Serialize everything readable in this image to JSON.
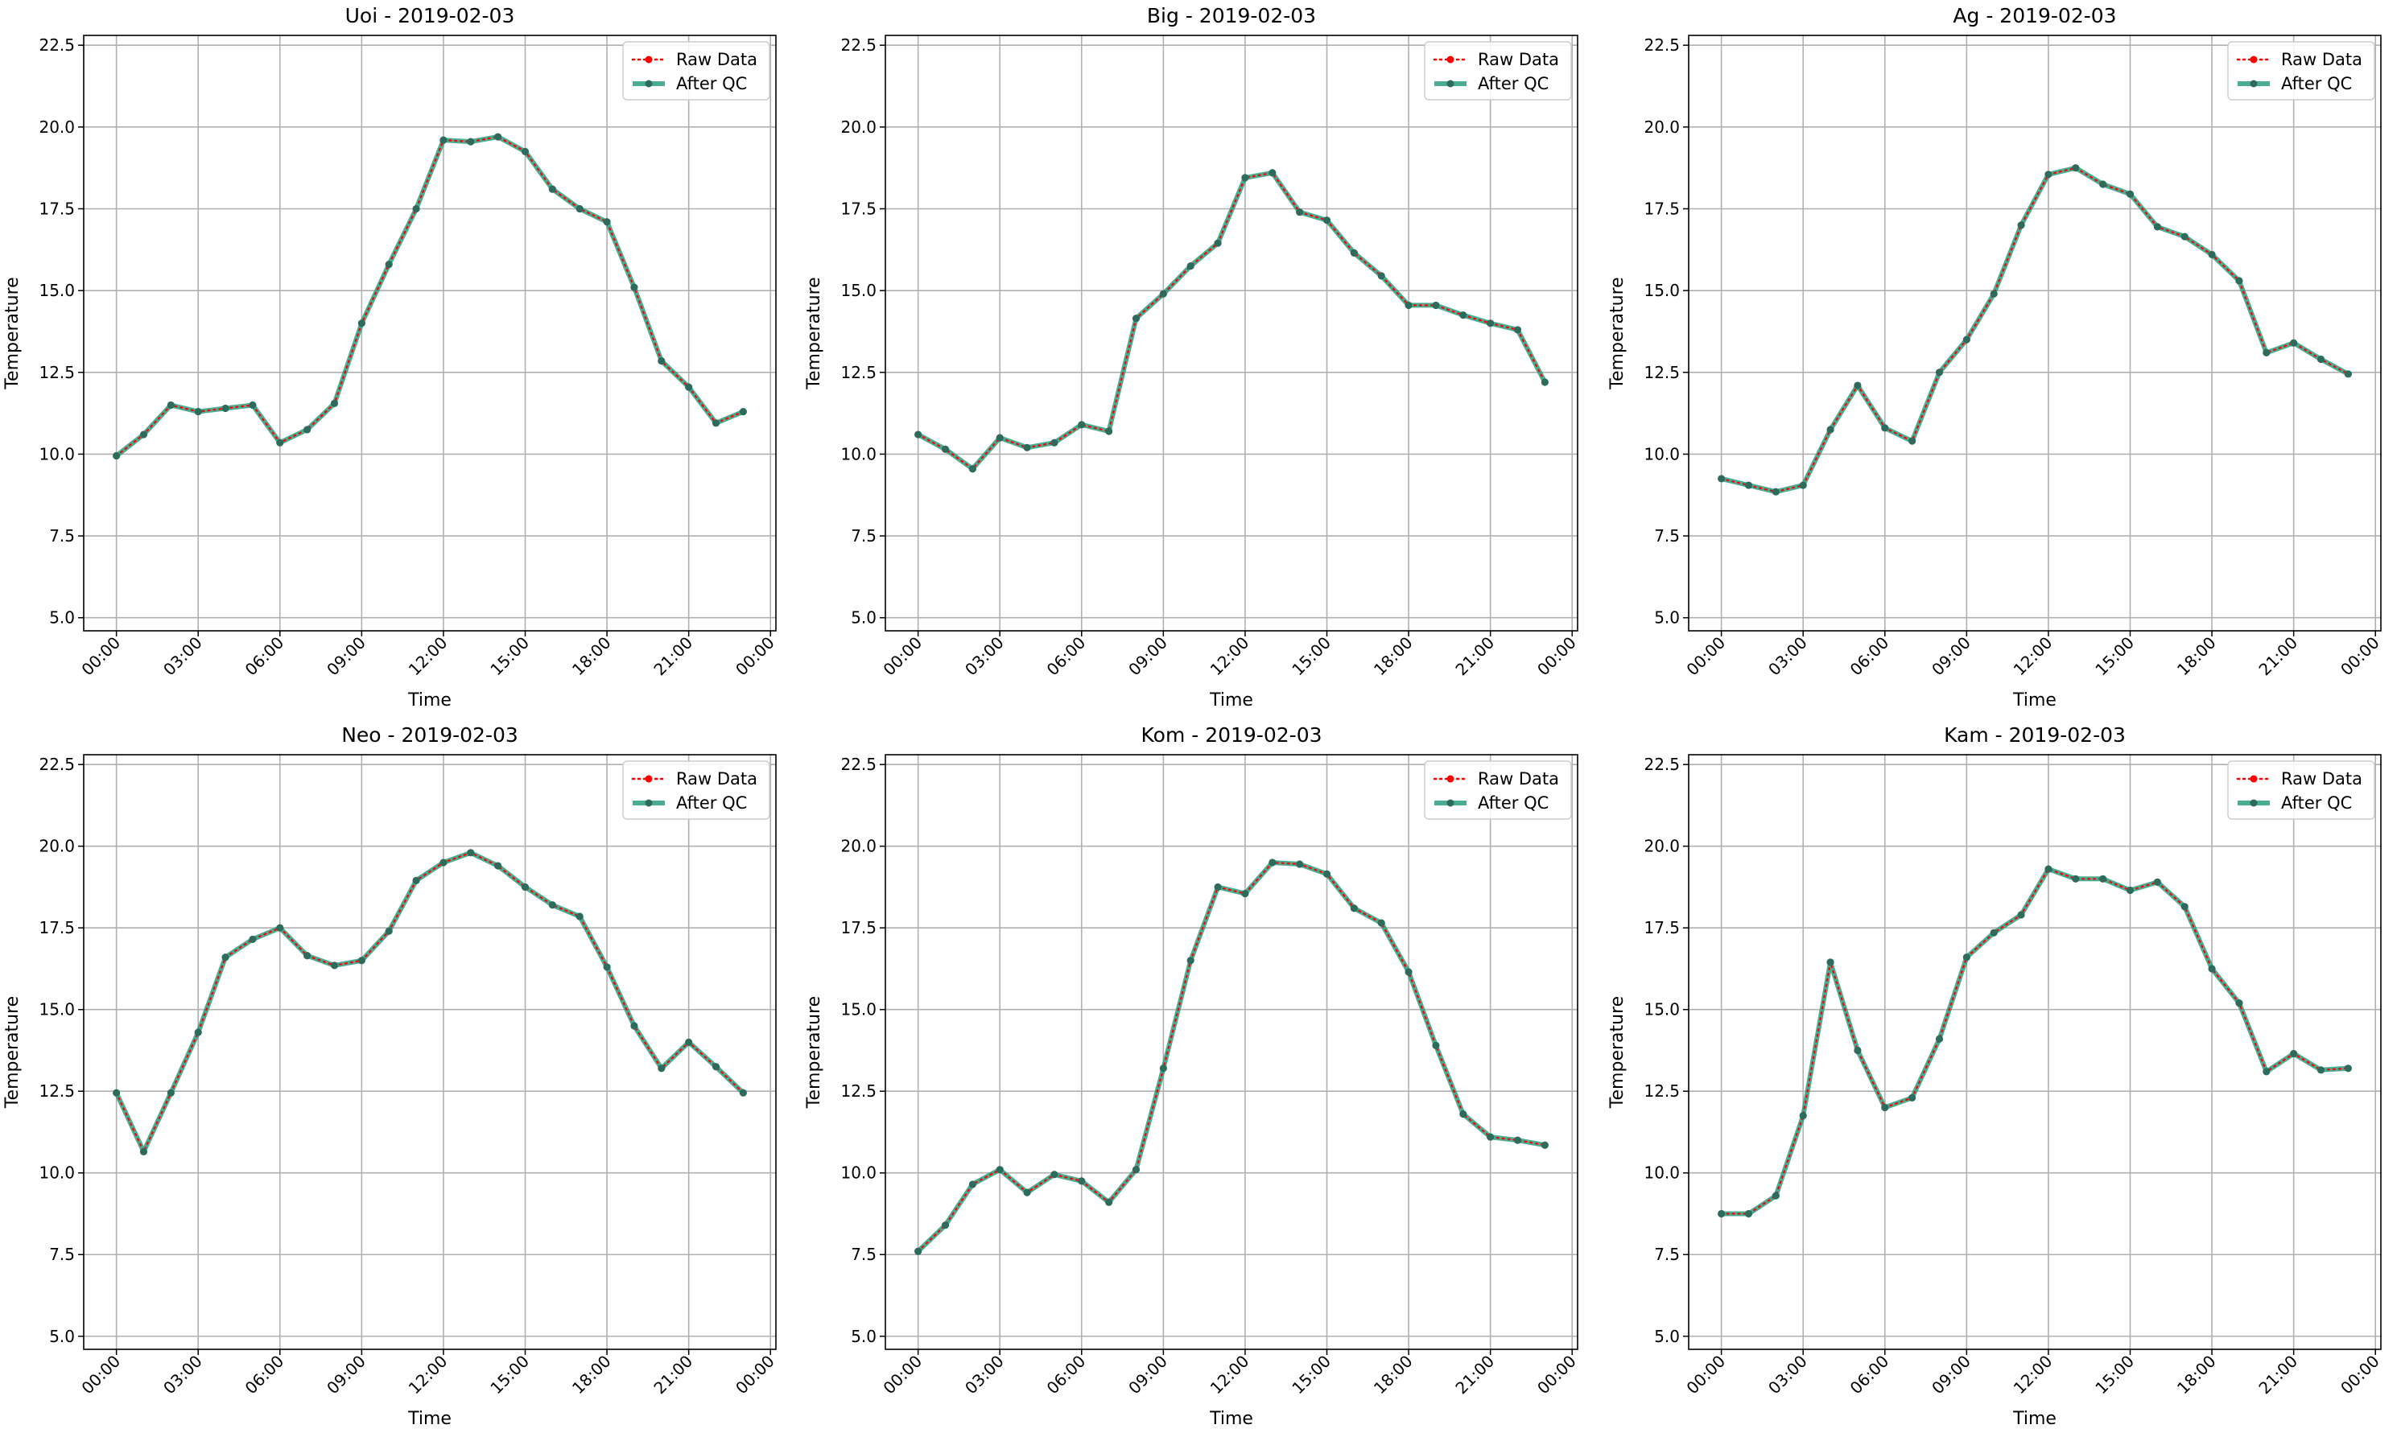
{
  "legend": {
    "raw_label": "Raw Data",
    "qc_label": "After QC",
    "placement": "upper right"
  },
  "colors": {
    "raw": "#ff0000",
    "qc": "#2a9d7f",
    "grid": "#b0b0b0",
    "axes": "#000000"
  },
  "chart_data": [
    {
      "type": "line",
      "title": "Uoi - 2019-02-03",
      "xlabel": "Time",
      "ylabel": "Temperature",
      "x_ticks": [
        "00:00",
        "03:00",
        "06:00",
        "09:00",
        "12:00",
        "15:00",
        "18:00",
        "21:00",
        "00:00"
      ],
      "y_ticks": [
        "5.0",
        "7.5",
        "10.0",
        "12.5",
        "15.0",
        "17.5",
        "20.0",
        "22.5"
      ],
      "ylim": [
        4.6,
        22.8
      ],
      "xlim_hours": [
        -1.2,
        24.2
      ],
      "x_hours": [
        0,
        1,
        2,
        3,
        4,
        5,
        6,
        7,
        8,
        9,
        10,
        11,
        12,
        13,
        14,
        15,
        16,
        17,
        18,
        19,
        20,
        21,
        22,
        23
      ],
      "grid": true,
      "series": [
        {
          "name": "Raw Data",
          "values": [
            9.95,
            10.6,
            11.5,
            11.3,
            11.4,
            11.5,
            10.35,
            10.75,
            11.55,
            14.0,
            15.8,
            17.5,
            19.6,
            19.55,
            19.7,
            19.25,
            18.1,
            17.5,
            17.1,
            15.1,
            12.85,
            12.05,
            10.95,
            11.3
          ]
        },
        {
          "name": "After QC",
          "values": [
            9.95,
            10.6,
            11.5,
            11.3,
            11.4,
            11.5,
            10.35,
            10.75,
            11.55,
            14.0,
            15.8,
            17.5,
            19.6,
            19.55,
            19.7,
            19.25,
            18.1,
            17.5,
            17.1,
            15.1,
            12.85,
            12.05,
            10.95,
            11.3
          ]
        }
      ]
    },
    {
      "type": "line",
      "title": "Big - 2019-02-03",
      "xlabel": "Time",
      "ylabel": "Temperature",
      "x_ticks": [
        "00:00",
        "03:00",
        "06:00",
        "09:00",
        "12:00",
        "15:00",
        "18:00",
        "21:00",
        "00:00"
      ],
      "y_ticks": [
        "5.0",
        "7.5",
        "10.0",
        "12.5",
        "15.0",
        "17.5",
        "20.0",
        "22.5"
      ],
      "ylim": [
        4.6,
        22.8
      ],
      "xlim_hours": [
        -1.2,
        24.2
      ],
      "x_hours": [
        0,
        1,
        2,
        3,
        4,
        5,
        6,
        7,
        8,
        9,
        10,
        11,
        12,
        13,
        14,
        15,
        16,
        17,
        18,
        19,
        20,
        21,
        22,
        23
      ],
      "grid": true,
      "series": [
        {
          "name": "Raw Data",
          "values": [
            10.6,
            10.15,
            9.55,
            10.5,
            10.2,
            10.35,
            10.9,
            10.7,
            14.15,
            14.9,
            15.75,
            16.45,
            18.45,
            18.6,
            17.4,
            17.15,
            16.15,
            15.45,
            14.55,
            14.55,
            14.25,
            14.0,
            13.8,
            12.2
          ]
        },
        {
          "name": "After QC",
          "values": [
            10.6,
            10.15,
            9.55,
            10.5,
            10.2,
            10.35,
            10.9,
            10.7,
            14.15,
            14.9,
            15.75,
            16.45,
            18.45,
            18.6,
            17.4,
            17.15,
            16.15,
            15.45,
            14.55,
            14.55,
            14.25,
            14.0,
            13.8,
            12.2
          ]
        }
      ]
    },
    {
      "type": "line",
      "title": "Ag - 2019-02-03",
      "xlabel": "Time",
      "ylabel": "Temperature",
      "x_ticks": [
        "00:00",
        "03:00",
        "06:00",
        "09:00",
        "12:00",
        "15:00",
        "18:00",
        "21:00",
        "00:00"
      ],
      "y_ticks": [
        "5.0",
        "7.5",
        "10.0",
        "12.5",
        "15.0",
        "17.5",
        "20.0",
        "22.5"
      ],
      "ylim": [
        4.6,
        22.8
      ],
      "xlim_hours": [
        -1.2,
        24.2
      ],
      "x_hours": [
        0,
        1,
        2,
        3,
        4,
        5,
        6,
        7,
        8,
        9,
        10,
        11,
        12,
        13,
        14,
        15,
        16,
        17,
        18,
        19,
        20,
        21,
        22,
        23
      ],
      "grid": true,
      "series": [
        {
          "name": "Raw Data",
          "values": [
            9.25,
            9.05,
            8.85,
            9.05,
            10.75,
            12.1,
            10.8,
            10.4,
            12.5,
            13.5,
            14.9,
            17.0,
            18.55,
            18.75,
            18.25,
            17.95,
            16.95,
            16.65,
            16.1,
            15.3,
            13.1,
            13.4,
            12.9,
            12.45
          ]
        },
        {
          "name": "After QC",
          "values": [
            9.25,
            9.05,
            8.85,
            9.05,
            10.75,
            12.1,
            10.8,
            10.4,
            12.5,
            13.5,
            14.9,
            17.0,
            18.55,
            18.75,
            18.25,
            17.95,
            16.95,
            16.65,
            16.1,
            15.3,
            13.1,
            13.4,
            12.9,
            12.45
          ]
        }
      ]
    },
    {
      "type": "line",
      "title": "Neo - 2019-02-03",
      "xlabel": "Time",
      "ylabel": "Temperature",
      "x_ticks": [
        "00:00",
        "03:00",
        "06:00",
        "09:00",
        "12:00",
        "15:00",
        "18:00",
        "21:00",
        "00:00"
      ],
      "y_ticks": [
        "5.0",
        "7.5",
        "10.0",
        "12.5",
        "15.0",
        "17.5",
        "20.0",
        "22.5"
      ],
      "ylim": [
        4.6,
        22.8
      ],
      "xlim_hours": [
        -1.2,
        24.2
      ],
      "x_hours": [
        0,
        1,
        2,
        3,
        4,
        5,
        6,
        7,
        8,
        9,
        10,
        11,
        12,
        13,
        14,
        15,
        16,
        17,
        18,
        19,
        20,
        21,
        22,
        23
      ],
      "grid": true,
      "series": [
        {
          "name": "Raw Data",
          "values": [
            12.45,
            10.65,
            12.45,
            14.3,
            16.6,
            17.15,
            17.5,
            16.65,
            16.35,
            16.5,
            17.4,
            18.95,
            19.5,
            19.8,
            19.4,
            18.75,
            18.2,
            17.85,
            16.3,
            14.5,
            13.2,
            14.0,
            13.25,
            12.45
          ]
        },
        {
          "name": "After QC",
          "values": [
            12.45,
            10.65,
            12.45,
            14.3,
            16.6,
            17.15,
            17.5,
            16.65,
            16.35,
            16.5,
            17.4,
            18.95,
            19.5,
            19.8,
            19.4,
            18.75,
            18.2,
            17.85,
            16.3,
            14.5,
            13.2,
            14.0,
            13.25,
            12.45
          ]
        }
      ]
    },
    {
      "type": "line",
      "title": "Kom - 2019-02-03",
      "xlabel": "Time",
      "ylabel": "Temperature",
      "x_ticks": [
        "00:00",
        "03:00",
        "06:00",
        "09:00",
        "12:00",
        "15:00",
        "18:00",
        "21:00",
        "00:00"
      ],
      "y_ticks": [
        "5.0",
        "7.5",
        "10.0",
        "12.5",
        "15.0",
        "17.5",
        "20.0",
        "22.5"
      ],
      "ylim": [
        4.6,
        22.8
      ],
      "xlim_hours": [
        -1.2,
        24.2
      ],
      "x_hours": [
        0,
        1,
        2,
        3,
        4,
        5,
        6,
        7,
        8,
        9,
        10,
        11,
        12,
        13,
        14,
        15,
        16,
        17,
        18,
        19,
        20,
        21,
        22,
        23
      ],
      "grid": true,
      "series": [
        {
          "name": "Raw Data",
          "values": [
            7.6,
            8.4,
            9.65,
            10.1,
            9.4,
            9.95,
            9.75,
            9.1,
            10.1,
            13.2,
            16.5,
            18.75,
            18.55,
            19.5,
            19.45,
            19.15,
            18.1,
            17.65,
            16.15,
            13.9,
            11.8,
            11.1,
            11.0,
            10.85
          ]
        },
        {
          "name": "After QC",
          "values": [
            7.6,
            8.4,
            9.65,
            10.1,
            9.4,
            9.95,
            9.75,
            9.1,
            10.1,
            13.2,
            16.5,
            18.75,
            18.55,
            19.5,
            19.45,
            19.15,
            18.1,
            17.65,
            16.15,
            13.9,
            11.8,
            11.1,
            11.0,
            10.85
          ]
        }
      ]
    },
    {
      "type": "line",
      "title": "Kam - 2019-02-03",
      "xlabel": "Time",
      "ylabel": "Temperature",
      "x_ticks": [
        "00:00",
        "03:00",
        "06:00",
        "09:00",
        "12:00",
        "15:00",
        "18:00",
        "21:00",
        "00:00"
      ],
      "y_ticks": [
        "5.0",
        "7.5",
        "10.0",
        "12.5",
        "15.0",
        "17.5",
        "20.0",
        "22.5"
      ],
      "ylim": [
        4.6,
        22.8
      ],
      "xlim_hours": [
        -1.2,
        24.2
      ],
      "x_hours": [
        0,
        1,
        2,
        3,
        4,
        5,
        6,
        7,
        8,
        9,
        10,
        11,
        12,
        13,
        14,
        15,
        16,
        17,
        18,
        19,
        20,
        21,
        22,
        23
      ],
      "grid": true,
      "series": [
        {
          "name": "Raw Data",
          "values": [
            8.75,
            8.75,
            9.3,
            11.75,
            16.45,
            13.75,
            12.0,
            12.3,
            14.1,
            16.6,
            17.35,
            17.9,
            19.3,
            19.0,
            19.0,
            18.65,
            18.9,
            18.15,
            16.25,
            15.2,
            13.1,
            13.65,
            13.15,
            13.2
          ]
        },
        {
          "name": "After QC",
          "values": [
            8.75,
            8.75,
            9.3,
            11.75,
            16.45,
            13.75,
            12.0,
            12.3,
            14.1,
            16.6,
            17.35,
            17.9,
            19.3,
            19.0,
            19.0,
            18.65,
            18.9,
            18.15,
            16.25,
            15.2,
            13.1,
            13.65,
            13.15,
            13.2
          ]
        }
      ]
    }
  ]
}
